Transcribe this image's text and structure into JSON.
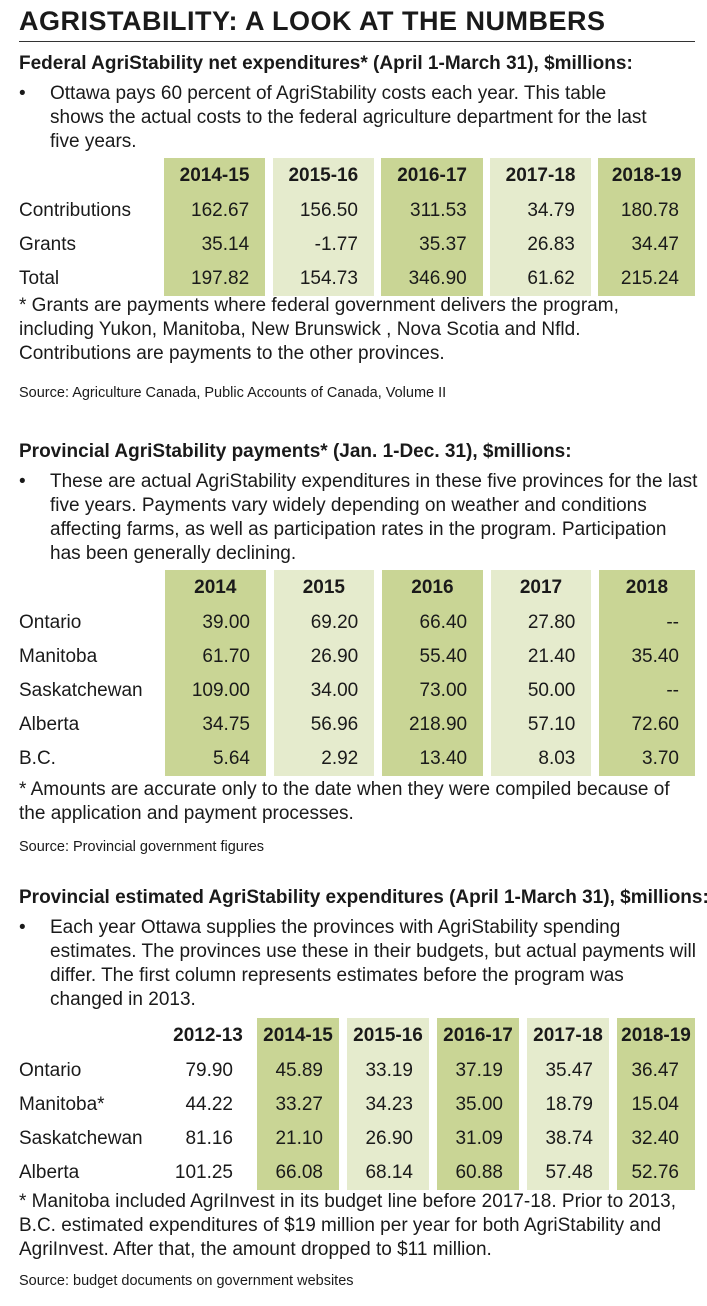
{
  "title": "AGRISTABILITY: A LOOK AT THE NUMBERS",
  "colors": {
    "dark_col": "#c9d595",
    "light_col": "#e5ebcd"
  },
  "federal": {
    "heading": "Federal AgriStability net expenditures* (April 1-March 31), $millions:",
    "bullet": "Ottawa pays 60 percent of AgriStability costs each year. This table shows the actual costs to the federal agriculture department for the last five years.",
    "columns": [
      "2014-15",
      "2015-16",
      "2016-17",
      "2017-18",
      "2018-19"
    ],
    "rows": [
      {
        "label": "Contributions",
        "values": [
          "162.67",
          "156.50",
          "311.53",
          "34.79",
          "180.78"
        ]
      },
      {
        "label": "Grants",
        "values": [
          "35.14",
          "-1.77",
          "35.37",
          "26.83",
          "34.47"
        ]
      },
      {
        "label": "Total",
        "values": [
          "197.82",
          "154.73",
          "346.90",
          "61.62",
          "215.24"
        ]
      }
    ],
    "note": "* Grants are payments where federal government delivers the program, including Yukon, Manitoba, New Brunswick , Nova Scotia and Nfld. Contributions are payments to the other provinces.",
    "source": "Source: Agriculture Canada, Public Accounts of Canada, Volume II"
  },
  "provincial": {
    "heading": "Provincial AgriStability payments* (Jan. 1-Dec. 31), $millions:",
    "bullet": "These are actual AgriStability expenditures in these five provinces for the last five years. Payments vary widely depending on weather and conditions affecting farms, as well as participation rates in the program. Participation has been generally declining.",
    "columns": [
      "2014",
      "2015",
      "2016",
      "2017",
      "2018"
    ],
    "rows": [
      {
        "label": "Ontario",
        "values": [
          "39.00",
          "69.20",
          "66.40",
          "27.80",
          "--"
        ]
      },
      {
        "label": "Manitoba",
        "values": [
          "61.70",
          "26.90",
          "55.40",
          "21.40",
          "35.40"
        ]
      },
      {
        "label": "Saskatchewan",
        "values": [
          "109.00",
          "34.00",
          "73.00",
          "50.00",
          "--"
        ]
      },
      {
        "label": "Alberta",
        "values": [
          "34.75",
          "56.96",
          "218.90",
          "57.10",
          "72.60"
        ]
      },
      {
        "label": "B.C.",
        "values": [
          "5.64",
          "2.92",
          "13.40",
          "8.03",
          "3.70"
        ]
      }
    ],
    "note": "* Amounts are accurate only to the date when they were compiled because of the application and payment processes.",
    "source": "Source: Provincial government figures"
  },
  "estimated": {
    "heading": "Provincial estimated AgriStability expenditures (April 1-March 31), $millions:",
    "bullet": "Each year Ottawa supplies the provinces with AgriStability spending estimates. The provinces use these in their budgets, but actual payments will differ. The first column represents estimates before the program was changed in 2013.",
    "columns": [
      "2012-13",
      "2014-15",
      "2015-16",
      "2016-17",
      "2017-18",
      "2018-19"
    ],
    "rows": [
      {
        "label": "Ontario",
        "values": [
          "79.90",
          "45.89",
          "33.19",
          "37.19",
          "35.47",
          "36.47"
        ]
      },
      {
        "label": "Manitoba*",
        "values": [
          "44.22",
          "33.27",
          "34.23",
          "35.00",
          "18.79",
          "15.04"
        ]
      },
      {
        "label": "Saskatchewan",
        "values": [
          "81.16",
          "21.10",
          "26.90",
          "31.09",
          "38.74",
          "32.40"
        ]
      },
      {
        "label": "Alberta",
        "values": [
          "101.25",
          "66.08",
          "68.14",
          "60.88",
          "57.48",
          "52.76"
        ]
      }
    ],
    "note": "* Manitoba included AgriInvest in its budget line before 2017-18. Prior to 2013, B.C. estimated expenditures of $19 million per year for both AgriStability and AgriInvest. After that, the amount dropped to $11 million.",
    "source": "Source: budget documents on government websites"
  }
}
